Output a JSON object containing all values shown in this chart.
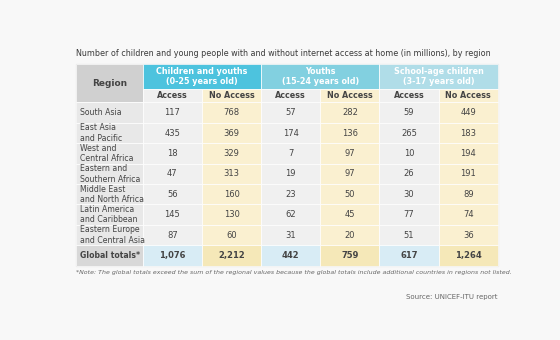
{
  "title": "Number of children and young people with and without internet access at home (in millions), by region",
  "note": "*Note: The global totals exceed the sum of the regional values because the global totals include additional countries in regions not listed.",
  "source": "Source: UNICEF-ITU report",
  "group_labels": [
    "Children and youths\n(0-25 years old)",
    "Youths\n(15-24 years old)",
    "School-age children\n(3-17 years old)"
  ],
  "group_colors": [
    "#4dc3de",
    "#82d0e0",
    "#b0dde8"
  ],
  "subheaders": [
    "Access",
    "No Access",
    "Access",
    "No Access",
    "Access",
    "No Access"
  ],
  "regions": [
    "South Asia",
    "East Asia\nand Pacific",
    "West and\nCentral Africa",
    "Eastern and\nSouthern Africa",
    "Middle East\nand North Africa",
    "Latin America\nand Caribbean",
    "Eastern Europe\nand Central Asia",
    "Global totals*"
  ],
  "data": [
    [
      117,
      768,
      57,
      282,
      59,
      449
    ],
    [
      435,
      369,
      174,
      136,
      265,
      183
    ],
    [
      18,
      329,
      7,
      97,
      10,
      194
    ],
    [
      47,
      313,
      19,
      97,
      26,
      191
    ],
    [
      56,
      160,
      23,
      50,
      30,
      89
    ],
    [
      145,
      130,
      62,
      45,
      77,
      74
    ],
    [
      87,
      60,
      31,
      20,
      51,
      36
    ],
    [
      1076,
      2212,
      442,
      759,
      617,
      1264
    ]
  ],
  "bg_color": "#f8f8f8",
  "region_header_bg": "#d0d0d0",
  "region_col_bg": "#e8e8e8",
  "global_region_bg": "#d8d8d8",
  "access_col_bg": "#f0f0f0",
  "no_access_col_bg": "#faf0d0",
  "global_access_bg": "#d8ecf5",
  "global_no_access_bg": "#f5e8b8",
  "subheader_access_bg": "#f0f0f0",
  "subheader_no_access_bg": "#faf0d0",
  "text_dark": "#444444",
  "text_white": "#ffffff",
  "text_bold_dark": "#222222",
  "border_color": "#cccccc",
  "title_color": "#3a3a3a",
  "note_color": "#666666"
}
